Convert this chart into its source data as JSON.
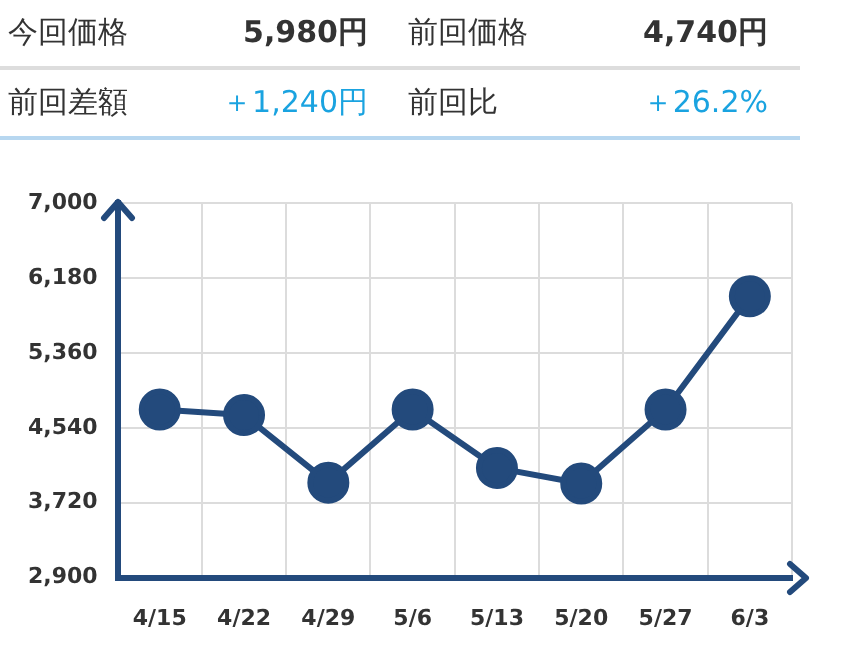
{
  "chart_data": {
    "type": "line",
    "annotations": [
      "今回価格",
      "5,980円",
      "前回価格",
      "4,740円",
      "前回差額",
      "＋1,240円",
      "前回比",
      "＋26.2%"
    ],
    "categories": [
      "4/15",
      "4/22",
      "4/29",
      "5/6",
      "5/13",
      "5/20",
      "5/27",
      "6/3"
    ],
    "series": [
      {
        "color": "#234a7c",
        "values": [
          4740,
          4680,
          3940,
          4740,
          4100,
          3930,
          4740,
          5980
        ]
      }
    ],
    "ylim": [
      2900,
      7000
    ],
    "yticks": [
      {
        "value": 2900,
        "label": "2,900"
      },
      {
        "value": 3720,
        "label": "3,720"
      },
      {
        "value": 4540,
        "label": "4,540"
      },
      {
        "value": 5360,
        "label": "5,360"
      },
      {
        "value": 6180,
        "label": "6,180"
      },
      {
        "value": 7000,
        "label": "7,000"
      }
    ],
    "grid": true,
    "marker": "circle",
    "line_style": "solid",
    "legend": false
  }
}
